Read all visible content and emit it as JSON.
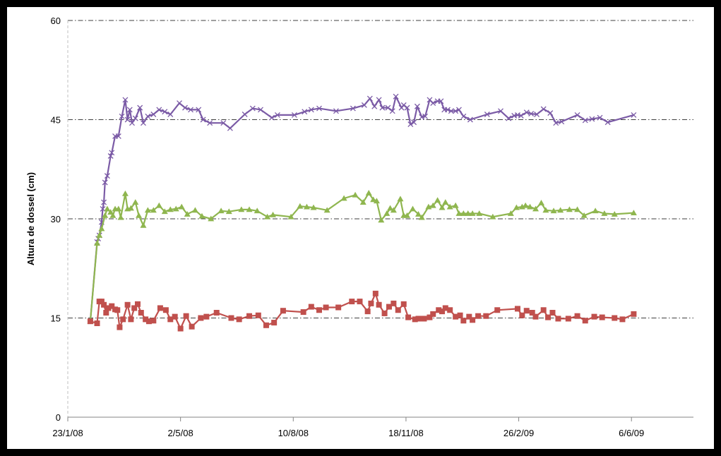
{
  "chart_data": {
    "type": "line",
    "title": "",
    "xlabel": "",
    "ylabel": "Altura de dossel (cm)",
    "ylim": [
      0,
      60
    ],
    "yticks": [
      "0",
      "15",
      "30",
      "45",
      "60"
    ],
    "xlim": [
      "2008-01-23",
      "2009-07-31"
    ],
    "xticks": [
      {
        "date": "2008-01-23",
        "label": "23/1/08"
      },
      {
        "date": "2008-05-02",
        "label": "2/5/08"
      },
      {
        "date": "2008-08-10",
        "label": "10/8/08"
      },
      {
        "date": "2008-11-18",
        "label": "18/11/08"
      },
      {
        "date": "2009-02-26",
        "label": "26/2/09"
      },
      {
        "date": "2009-06-06",
        "label": "6/6/09"
      }
    ],
    "grid": {
      "horizontal": true,
      "vertical": false,
      "style": "dash-dot"
    },
    "legend": "none",
    "series": [
      {
        "color": "#7b5ba6",
        "marker": "x",
        "points": [
          [
            "2008-02-12",
            14.5
          ],
          [
            "2008-02-18",
            26.5
          ],
          [
            "2008-02-19",
            27
          ],
          [
            "2008-02-20",
            27.5
          ],
          [
            "2008-02-22",
            29.5
          ],
          [
            "2008-02-23",
            31.5
          ],
          [
            "2008-02-24",
            32.5
          ],
          [
            "2008-02-25",
            35.5
          ],
          [
            "2008-02-27",
            36.5
          ],
          [
            "2008-03-01",
            39.5
          ],
          [
            "2008-03-02",
            40
          ],
          [
            "2008-03-05",
            42.5
          ],
          [
            "2008-03-08",
            42.5
          ],
          [
            "2008-03-11",
            45.5
          ],
          [
            "2008-03-14",
            48
          ],
          [
            "2008-03-16",
            45
          ],
          [
            "2008-03-18",
            46.5
          ],
          [
            "2008-03-20",
            44.5
          ],
          [
            "2008-03-23",
            45.2
          ],
          [
            "2008-03-27",
            46.8
          ],
          [
            "2008-03-30",
            44.5
          ],
          [
            "2008-04-03",
            45.5
          ],
          [
            "2008-04-08",
            45.8
          ],
          [
            "2008-04-13",
            46.5
          ],
          [
            "2008-04-18",
            46.2
          ],
          [
            "2008-04-23",
            45.8
          ],
          [
            "2008-05-01",
            47.5
          ],
          [
            "2008-05-06",
            46.8
          ],
          [
            "2008-05-11",
            46.5
          ],
          [
            "2008-05-18",
            46.5
          ],
          [
            "2008-05-22",
            45
          ],
          [
            "2008-05-28",
            44.5
          ],
          [
            "2008-06-09",
            44.5
          ],
          [
            "2008-06-15",
            43.7
          ],
          [
            "2008-06-28",
            45.8
          ],
          [
            "2008-07-05",
            46.7
          ],
          [
            "2008-07-12",
            46.5
          ],
          [
            "2008-07-22",
            45.3
          ],
          [
            "2008-07-27",
            45.7
          ],
          [
            "2008-08-11",
            45.7
          ],
          [
            "2008-08-20",
            46.2
          ],
          [
            "2008-08-26",
            46.5
          ],
          [
            "2008-09-02",
            46.7
          ],
          [
            "2008-09-17",
            46.3
          ],
          [
            "2008-10-02",
            46.7
          ],
          [
            "2008-10-12",
            47.2
          ],
          [
            "2008-10-17",
            48.2
          ],
          [
            "2008-10-21",
            47
          ],
          [
            "2008-10-25",
            48
          ],
          [
            "2008-10-28",
            46.8
          ],
          [
            "2008-11-02",
            46.8
          ],
          [
            "2008-11-06",
            46.3
          ],
          [
            "2008-11-09",
            48.5
          ],
          [
            "2008-11-14",
            46.8
          ],
          [
            "2008-11-16",
            47.2
          ],
          [
            "2008-11-19",
            46.8
          ],
          [
            "2008-11-22",
            44.3
          ],
          [
            "2008-11-25",
            44.6
          ],
          [
            "2008-11-28",
            47
          ],
          [
            "2008-12-02",
            45.4
          ],
          [
            "2008-12-05",
            45.5
          ],
          [
            "2008-12-09",
            48
          ],
          [
            "2008-12-12",
            47.5
          ],
          [
            "2008-12-16",
            47.8
          ],
          [
            "2008-12-19",
            47.8
          ],
          [
            "2008-12-22",
            46.5
          ],
          [
            "2008-12-25",
            46.5
          ],
          [
            "2008-12-28",
            46.3
          ],
          [
            "2009-01-01",
            46.3
          ],
          [
            "2009-01-04",
            46.5
          ],
          [
            "2009-01-08",
            45.5
          ],
          [
            "2009-01-14",
            45
          ],
          [
            "2009-01-29",
            45.8
          ],
          [
            "2009-02-10",
            46.3
          ],
          [
            "2009-02-17",
            45.2
          ],
          [
            "2009-02-22",
            45.6
          ],
          [
            "2009-02-25",
            45.7
          ],
          [
            "2009-02-28",
            45.6
          ],
          [
            "2009-03-05",
            46.1
          ],
          [
            "2009-03-09",
            45.9
          ],
          [
            "2009-03-14",
            45.8
          ],
          [
            "2009-03-20",
            46.6
          ],
          [
            "2009-03-26",
            46
          ],
          [
            "2009-03-31",
            44.5
          ],
          [
            "2009-04-05",
            44.7
          ],
          [
            "2009-04-19",
            45.7
          ],
          [
            "2009-04-26",
            44.9
          ],
          [
            "2009-05-02",
            45.1
          ],
          [
            "2009-05-09",
            45.3
          ],
          [
            "2009-05-16",
            44.6
          ],
          [
            "2009-06-08",
            45.7
          ]
        ]
      },
      {
        "color": "#8fb64f",
        "marker": "triangle",
        "points": [
          [
            "2008-02-12",
            14.5
          ],
          [
            "2008-02-18",
            26.3
          ],
          [
            "2008-02-20",
            27.5
          ],
          [
            "2008-02-22",
            28.5
          ],
          [
            "2008-02-25",
            30.5
          ],
          [
            "2008-02-27",
            31.5
          ],
          [
            "2008-03-01",
            31
          ],
          [
            "2008-03-03",
            30.5
          ],
          [
            "2008-03-05",
            31.5
          ],
          [
            "2008-03-08",
            31.5
          ],
          [
            "2008-03-10",
            30.2
          ],
          [
            "2008-03-14",
            33.8
          ],
          [
            "2008-03-16",
            31.5
          ],
          [
            "2008-03-19",
            31.6
          ],
          [
            "2008-03-23",
            32.5
          ],
          [
            "2008-03-26",
            30.5
          ],
          [
            "2008-03-30",
            29
          ],
          [
            "2008-04-03",
            31.3
          ],
          [
            "2008-04-08",
            31.3
          ],
          [
            "2008-04-13",
            32
          ],
          [
            "2008-04-18",
            31.1
          ],
          [
            "2008-04-23",
            31.4
          ],
          [
            "2008-04-28",
            31.5
          ],
          [
            "2008-05-03",
            31.8
          ],
          [
            "2008-05-08",
            30.7
          ],
          [
            "2008-05-15",
            31.3
          ],
          [
            "2008-05-21",
            30.4
          ],
          [
            "2008-05-29",
            30
          ],
          [
            "2008-06-07",
            31.2
          ],
          [
            "2008-06-14",
            31.1
          ],
          [
            "2008-06-25",
            31.4
          ],
          [
            "2008-07-02",
            31.4
          ],
          [
            "2008-07-09",
            31.2
          ],
          [
            "2008-07-18",
            30.3
          ],
          [
            "2008-07-23",
            30.6
          ],
          [
            "2008-08-08",
            30.3
          ],
          [
            "2008-08-16",
            31.9
          ],
          [
            "2008-08-22",
            31.8
          ],
          [
            "2008-08-28",
            31.7
          ],
          [
            "2008-09-09",
            31.3
          ],
          [
            "2008-09-24",
            33.1
          ],
          [
            "2008-10-04",
            33.6
          ],
          [
            "2008-10-11",
            32.5
          ],
          [
            "2008-10-16",
            33.9
          ],
          [
            "2008-10-20",
            32.9
          ],
          [
            "2008-10-23",
            32.7
          ],
          [
            "2008-10-27",
            29.8
          ],
          [
            "2008-11-01",
            30.8
          ],
          [
            "2008-11-04",
            31.6
          ],
          [
            "2008-11-07",
            31.3
          ],
          [
            "2008-11-13",
            33
          ],
          [
            "2008-11-16",
            30.5
          ],
          [
            "2008-11-19",
            30.5
          ],
          [
            "2008-11-24",
            31.5
          ],
          [
            "2008-11-29",
            30.7
          ],
          [
            "2008-12-02",
            30.2
          ],
          [
            "2008-12-08",
            31.8
          ],
          [
            "2008-12-12",
            32
          ],
          [
            "2008-12-16",
            32.8
          ],
          [
            "2008-12-20",
            31.7
          ],
          [
            "2008-12-23",
            32.5
          ],
          [
            "2008-12-27",
            31.8
          ],
          [
            "2009-01-01",
            32
          ],
          [
            "2009-01-04",
            30.8
          ],
          [
            "2009-01-08",
            30.8
          ],
          [
            "2009-01-12",
            30.8
          ],
          [
            "2009-01-16",
            30.8
          ],
          [
            "2009-01-22",
            30.8
          ],
          [
            "2009-02-03",
            30.3
          ],
          [
            "2009-02-19",
            30.8
          ],
          [
            "2009-02-24",
            31.7
          ],
          [
            "2009-03-01",
            31.8
          ],
          [
            "2009-03-04",
            32
          ],
          [
            "2009-03-08",
            31.8
          ],
          [
            "2009-03-13",
            31.5
          ],
          [
            "2009-03-18",
            32.4
          ],
          [
            "2009-03-22",
            31.3
          ],
          [
            "2009-03-29",
            31.2
          ],
          [
            "2009-04-04",
            31.3
          ],
          [
            "2009-04-12",
            31.4
          ],
          [
            "2009-04-19",
            31.4
          ],
          [
            "2009-04-25",
            30.5
          ],
          [
            "2009-05-05",
            31.2
          ],
          [
            "2009-05-13",
            30.8
          ],
          [
            "2009-05-22",
            30.7
          ],
          [
            "2009-06-08",
            30.9
          ]
        ]
      },
      {
        "color": "#c0504d",
        "marker": "square",
        "points": [
          [
            "2008-02-12",
            14.5
          ],
          [
            "2008-02-18",
            14.2
          ],
          [
            "2008-02-20",
            17.5
          ],
          [
            "2008-02-22",
            17.5
          ],
          [
            "2008-02-24",
            17
          ],
          [
            "2008-02-26",
            15.8
          ],
          [
            "2008-02-28",
            16.5
          ],
          [
            "2008-03-02",
            16.8
          ],
          [
            "2008-03-05",
            16.3
          ],
          [
            "2008-03-07",
            16.2
          ],
          [
            "2008-03-09",
            13.6
          ],
          [
            "2008-03-12",
            14.8
          ],
          [
            "2008-03-16",
            17
          ],
          [
            "2008-03-19",
            14.8
          ],
          [
            "2008-03-22",
            16.5
          ],
          [
            "2008-03-25",
            17.1
          ],
          [
            "2008-03-28",
            15.8
          ],
          [
            "2008-04-01",
            14.8
          ],
          [
            "2008-04-04",
            14.5
          ],
          [
            "2008-04-08",
            14.6
          ],
          [
            "2008-04-14",
            16.5
          ],
          [
            "2008-04-19",
            16.2
          ],
          [
            "2008-04-23",
            14.8
          ],
          [
            "2008-04-27",
            15.2
          ],
          [
            "2008-05-02",
            13.4
          ],
          [
            "2008-05-07",
            15.3
          ],
          [
            "2008-05-12",
            13.7
          ],
          [
            "2008-05-20",
            15
          ],
          [
            "2008-05-25",
            15.2
          ],
          [
            "2008-06-03",
            15.8
          ],
          [
            "2008-06-16",
            15
          ],
          [
            "2008-06-23",
            14.8
          ],
          [
            "2008-07-02",
            15.3
          ],
          [
            "2008-07-10",
            15.4
          ],
          [
            "2008-07-17",
            13.9
          ],
          [
            "2008-07-24",
            14.3
          ],
          [
            "2008-08-01",
            16.1
          ],
          [
            "2008-08-19",
            15.9
          ],
          [
            "2008-08-26",
            16.7
          ],
          [
            "2008-09-02",
            16.2
          ],
          [
            "2008-09-08",
            16.6
          ],
          [
            "2008-09-19",
            16.6
          ],
          [
            "2008-10-01",
            17.5
          ],
          [
            "2008-10-08",
            17.5
          ],
          [
            "2008-10-15",
            16
          ],
          [
            "2008-10-18",
            17.2
          ],
          [
            "2008-10-22",
            18.7
          ],
          [
            "2008-10-25",
            17
          ],
          [
            "2008-10-30",
            15.7
          ],
          [
            "2008-11-03",
            16.7
          ],
          [
            "2008-11-07",
            17.2
          ],
          [
            "2008-11-11",
            16.2
          ],
          [
            "2008-11-16",
            17.1
          ],
          [
            "2008-11-20",
            15.1
          ],
          [
            "2008-11-26",
            14.8
          ],
          [
            "2008-11-29",
            14.9
          ],
          [
            "2008-12-04",
            14.9
          ],
          [
            "2008-12-09",
            15.1
          ],
          [
            "2008-12-12",
            15.6
          ],
          [
            "2008-12-17",
            16.2
          ],
          [
            "2008-12-20",
            16
          ],
          [
            "2008-12-23",
            16.5
          ],
          [
            "2008-12-27",
            16.2
          ],
          [
            "2009-01-01",
            15.2
          ],
          [
            "2009-01-05",
            15.4
          ],
          [
            "2009-01-08",
            14.6
          ],
          [
            "2009-01-13",
            15.2
          ],
          [
            "2009-01-16",
            14.7
          ],
          [
            "2009-01-21",
            15.3
          ],
          [
            "2009-01-28",
            15.3
          ],
          [
            "2009-02-07",
            16.2
          ],
          [
            "2009-02-25",
            16.4
          ],
          [
            "2009-03-01",
            15.4
          ],
          [
            "2009-03-05",
            16.1
          ],
          [
            "2009-03-10",
            15.8
          ],
          [
            "2009-03-13",
            15.2
          ],
          [
            "2009-03-20",
            16.2
          ],
          [
            "2009-03-24",
            15.1
          ],
          [
            "2009-03-28",
            15.8
          ],
          [
            "2009-04-02",
            14.9
          ],
          [
            "2009-04-11",
            14.9
          ],
          [
            "2009-04-19",
            15.3
          ],
          [
            "2009-04-26",
            14.6
          ],
          [
            "2009-05-04",
            15.2
          ],
          [
            "2009-05-11",
            15.1
          ],
          [
            "2009-05-22",
            15
          ],
          [
            "2009-05-29",
            14.8
          ],
          [
            "2009-06-08",
            15.6
          ]
        ]
      }
    ]
  }
}
